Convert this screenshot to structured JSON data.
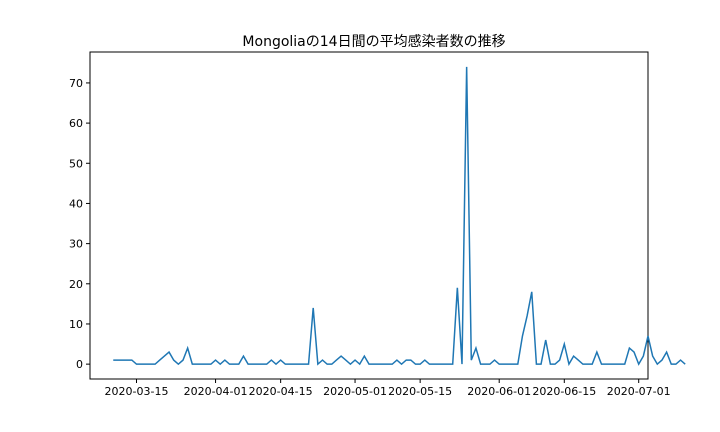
{
  "chart_data": {
    "type": "line",
    "title": "Mongoliaの14日間の平均感染者数の推移",
    "xlabel": "",
    "ylabel": "",
    "grid": false,
    "x_start": "2020-03-10",
    "x_end": "2020-06-30",
    "xlim": [
      "2020-03-05",
      "2020-07-03"
    ],
    "ylim": [
      -3.7,
      77.7
    ],
    "x_ticks": [
      "2020-03-15",
      "2020-04-01",
      "2020-04-15",
      "2020-05-01",
      "2020-05-15",
      "2020-06-01",
      "2020-06-15",
      "2020-07-01"
    ],
    "y_ticks": [
      0,
      10,
      20,
      30,
      40,
      50,
      60,
      70
    ],
    "line_color": "#1f77b4",
    "series": [
      {
        "values": [
          1,
          1,
          1,
          1,
          1,
          0,
          0,
          0,
          0,
          0,
          1,
          2,
          3,
          1,
          0,
          1,
          4,
          0,
          0,
          0,
          0,
          0,
          1,
          0,
          1,
          0,
          0,
          0,
          2,
          0,
          0,
          0,
          0,
          0,
          1,
          0,
          1,
          0,
          0,
          0,
          0,
          0,
          0,
          14,
          0,
          1,
          0,
          0,
          1,
          2,
          1,
          0,
          1,
          0,
          2,
          0,
          0,
          0,
          0,
          0,
          0,
          1,
          0,
          1,
          1,
          0,
          0,
          1,
          0,
          0,
          0,
          0,
          0,
          0,
          19,
          0,
          74,
          1,
          4,
          0,
          0,
          0,
          1,
          0,
          0,
          0,
          0,
          0,
          7,
          12,
          18,
          0,
          0,
          6,
          0,
          0,
          1,
          5,
          0,
          2,
          1,
          0,
          0,
          0,
          3,
          0,
          0,
          0,
          0,
          0,
          0,
          4,
          3,
          0,
          2,
          7,
          2,
          0,
          1,
          3,
          0,
          0,
          1,
          0
        ]
      }
    ]
  }
}
